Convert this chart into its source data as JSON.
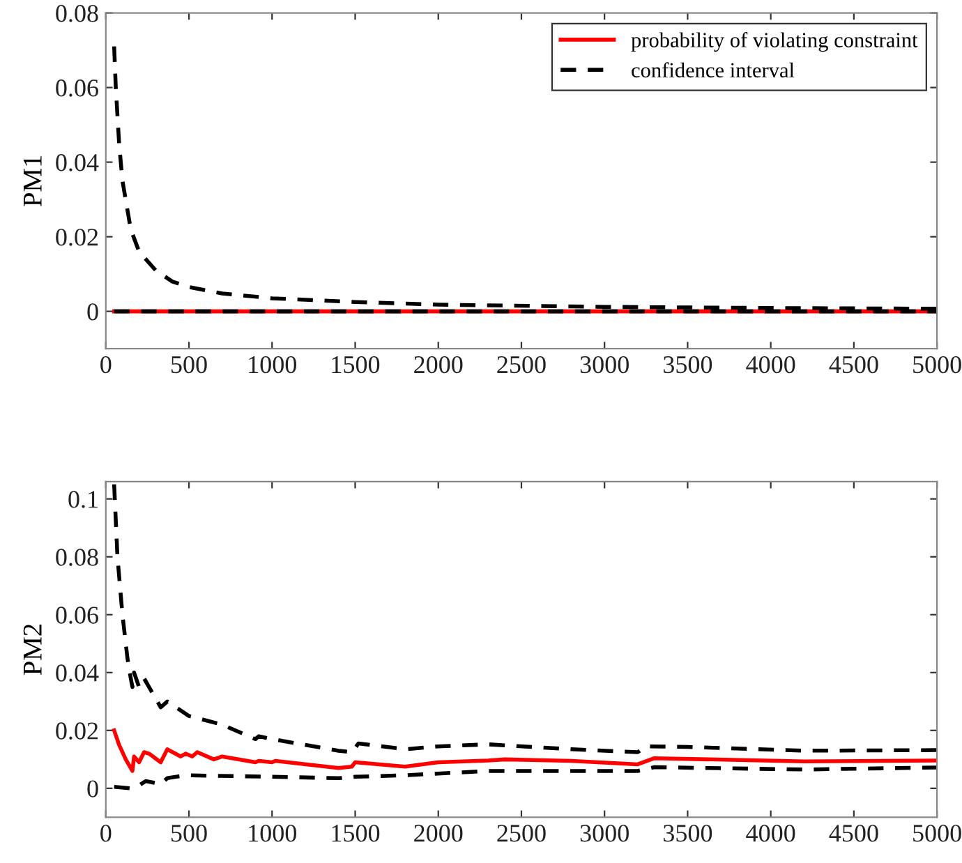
{
  "chart_data": [
    {
      "type": "line",
      "ylabel": "PM1",
      "xlim": [
        0,
        5000
      ],
      "xticks": [
        0,
        500,
        1000,
        1500,
        2000,
        2500,
        3000,
        3500,
        4000,
        4500,
        5000
      ],
      "ylim": [
        -0.01,
        0.08
      ],
      "yticks": [
        0,
        0.02,
        0.04,
        0.06,
        0.08
      ],
      "grid": false,
      "legend": "top right",
      "series": [
        {
          "name": "probability of violating constraint",
          "color": "#ff0000",
          "line_style": "solid",
          "x": [
            50,
            5000
          ],
          "values": [
            0,
            0
          ]
        },
        {
          "name": "confidence interval",
          "color": "#000000",
          "line_style": "dashed",
          "x": [
            50,
            60,
            80,
            100,
            150,
            200,
            300,
            400,
            500,
            700,
            1000,
            1500,
            2000,
            3000,
            4000,
            5000
          ],
          "values": [
            0.071,
            0.06,
            0.045,
            0.035,
            0.022,
            0.016,
            0.011,
            0.008,
            0.0065,
            0.0048,
            0.0035,
            0.0025,
            0.0018,
            0.0012,
            0.0009,
            0.0007
          ]
        },
        {
          "color": "#000000",
          "line_style": "dashed",
          "x": [
            50,
            5000
          ],
          "values": [
            0,
            0
          ]
        }
      ]
    },
    {
      "type": "line",
      "ylabel": "PM2",
      "xlim": [
        0,
        5000
      ],
      "xticks": [
        0,
        500,
        1000,
        1500,
        2000,
        2500,
        3000,
        3500,
        4000,
        4500,
        5000
      ],
      "ylim": [
        -0.01,
        0.106
      ],
      "yticks": [
        0,
        0.02,
        0.04,
        0.06,
        0.08,
        0.1
      ],
      "grid": false,
      "legend": false,
      "series": [
        {
          "color": "#ff0000",
          "line_style": "solid",
          "x": [
            50,
            80,
            120,
            160,
            170,
            200,
            230,
            260,
            330,
            370,
            450,
            480,
            520,
            550,
            650,
            700,
            900,
            920,
            1000,
            1020,
            1400,
            1480,
            1500,
            1800,
            2000,
            2300,
            2400,
            2800,
            3200,
            3300,
            4200,
            5000
          ],
          "values": [
            0.02,
            0.015,
            0.01,
            0.006,
            0.011,
            0.009,
            0.0125,
            0.012,
            0.009,
            0.0135,
            0.011,
            0.012,
            0.011,
            0.0125,
            0.01,
            0.011,
            0.009,
            0.0095,
            0.009,
            0.0095,
            0.007,
            0.0075,
            0.009,
            0.0075,
            0.009,
            0.0096,
            0.01,
            0.0095,
            0.0083,
            0.0104,
            0.0093,
            0.0096
          ]
        },
        {
          "color": "#000000",
          "line_style": "dashed",
          "x": [
            50,
            70,
            100,
            130,
            150,
            160,
            170,
            200,
            230,
            260,
            330,
            370,
            500,
            700,
            900,
            920,
            1000,
            1400,
            1480,
            1520,
            1800,
            2000,
            2300,
            2800,
            3200,
            3250,
            3500,
            4200,
            5000
          ],
          "values": [
            0.105,
            0.08,
            0.06,
            0.045,
            0.038,
            0.035,
            0.04,
            0.035,
            0.038,
            0.035,
            0.028,
            0.03,
            0.025,
            0.022,
            0.017,
            0.018,
            0.017,
            0.013,
            0.0125,
            0.0155,
            0.0135,
            0.0145,
            0.0152,
            0.0135,
            0.0125,
            0.0145,
            0.0143,
            0.013,
            0.0132
          ]
        },
        {
          "color": "#000000",
          "line_style": "dashed",
          "x": [
            50,
            150,
            200,
            240,
            330,
            370,
            480,
            1000,
            1400,
            1500,
            1800,
            2300,
            2800,
            3200,
            3300,
            4200,
            5000
          ],
          "values": [
            0.0005,
            0,
            0.001,
            0.0025,
            0.0015,
            0.0035,
            0.0045,
            0.004,
            0.0035,
            0.004,
            0.0045,
            0.006,
            0.006,
            0.006,
            0.0073,
            0.0065,
            0.0072
          ]
        }
      ]
    }
  ]
}
